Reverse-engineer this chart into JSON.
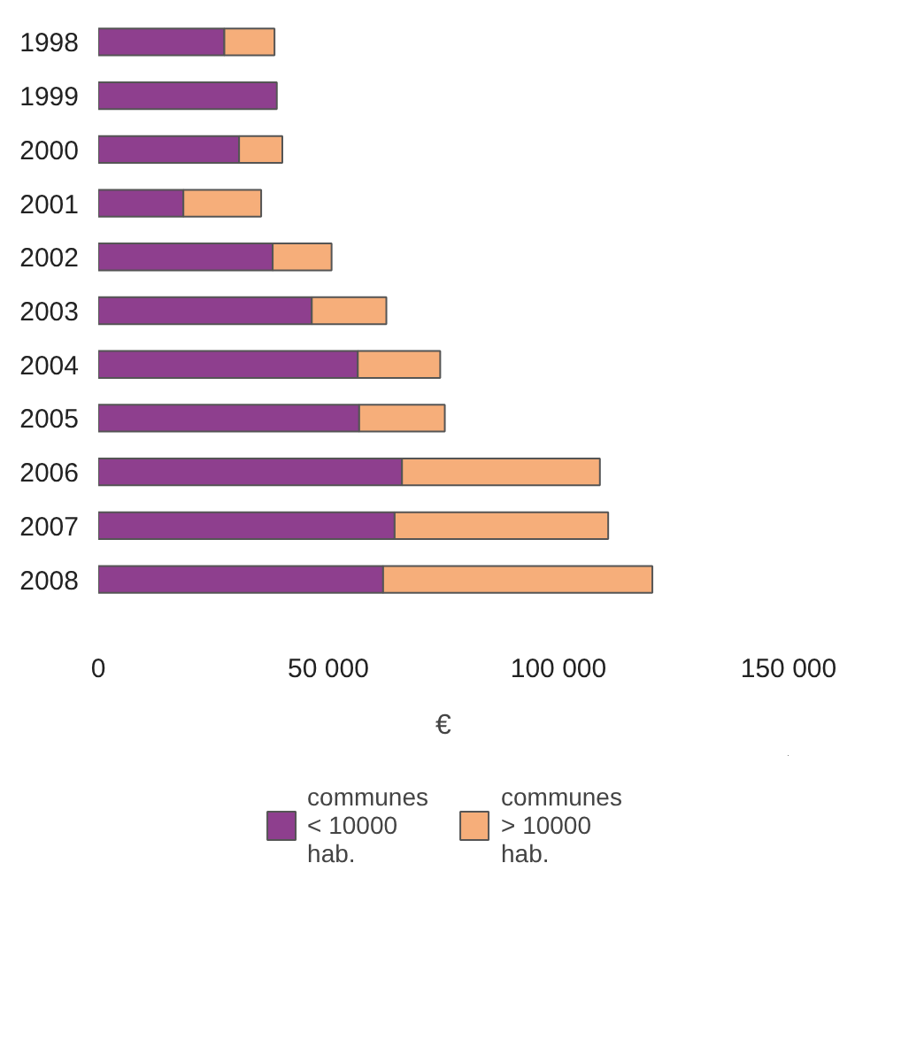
{
  "chart_data": {
    "type": "bar",
    "orientation": "horizontal",
    "stacked": true,
    "xlabel": "€",
    "categories": [
      "1998",
      "1999",
      "2000",
      "2001",
      "2002",
      "2003",
      "2004",
      "2005",
      "2006",
      "2007",
      "2008"
    ],
    "series": [
      {
        "name": "communes < 10000 hab.",
        "color": "#8e3f8e",
        "values": [
          27400,
          38800,
          30600,
          18500,
          37900,
          46400,
          56400,
          56700,
          66000,
          64400,
          61900
        ]
      },
      {
        "name": "communes > 10000 hab.",
        "color": "#f6ae7a",
        "values": [
          10900,
          null,
          9400,
          16900,
          12800,
          16200,
          17900,
          18600,
          43000,
          46400,
          58500
        ]
      }
    ],
    "xlim": [
      0,
      150000
    ],
    "xticks": [
      0,
      {
        "value": 50000,
        "label": "50 000"
      },
      {
        "value": 100000,
        "label": "100 000"
      },
      {
        "value": 150000,
        "label": "150 000"
      }
    ],
    "grid": false,
    "legend": "bottom"
  }
}
